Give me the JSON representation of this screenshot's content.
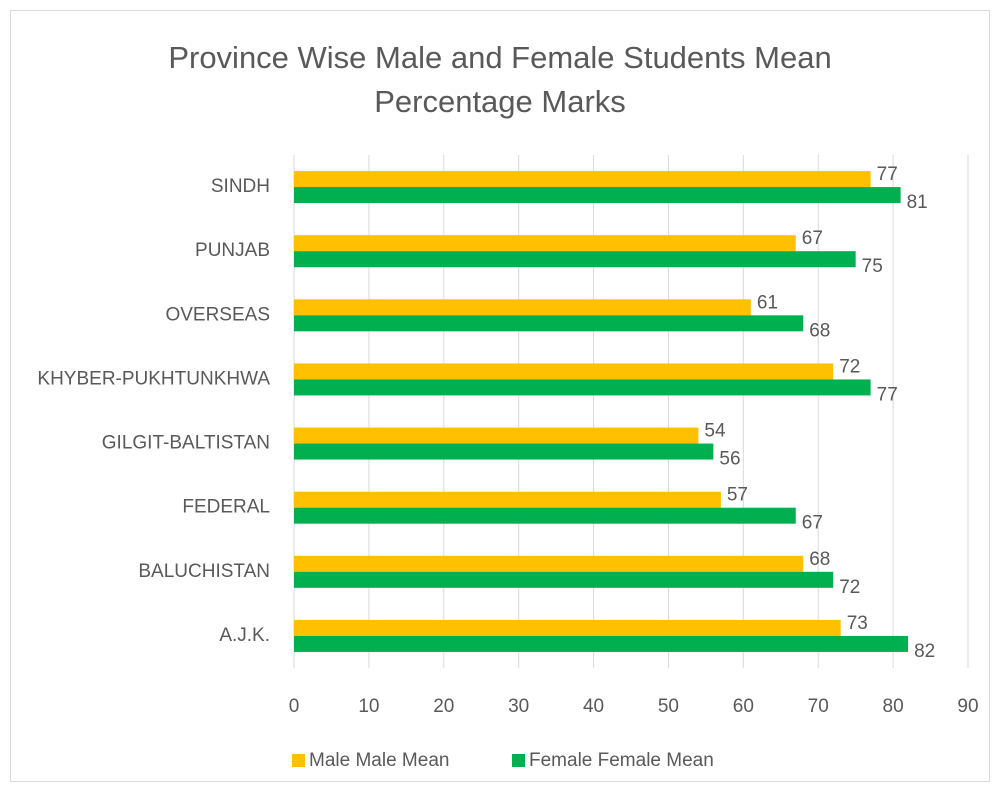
{
  "chart_data": {
    "type": "bar",
    "orientation": "horizontal",
    "title": "Province Wise Male and Female Students Mean Percentage Marks",
    "categories": [
      "SINDH",
      "PUNJAB",
      "OVERSEAS",
      "KHYBER-PUKHTUNKHWA",
      "GILGIT-BALTISTAN",
      "FEDERAL",
      "BALUCHISTAN",
      "A.J.K."
    ],
    "series": [
      {
        "name": "Male Male Mean",
        "color": "#ffc000",
        "values": [
          77,
          67,
          61,
          72,
          54,
          57,
          68,
          73
        ]
      },
      {
        "name": "Female Female Mean",
        "color": "#00b050",
        "values": [
          81,
          75,
          68,
          77,
          56,
          67,
          72,
          82
        ]
      }
    ],
    "xlim": [
      0,
      90
    ],
    "xticks": [
      0,
      10,
      20,
      30,
      40,
      50,
      60,
      70,
      80,
      90
    ],
    "grid": true,
    "legend": "bottom"
  }
}
